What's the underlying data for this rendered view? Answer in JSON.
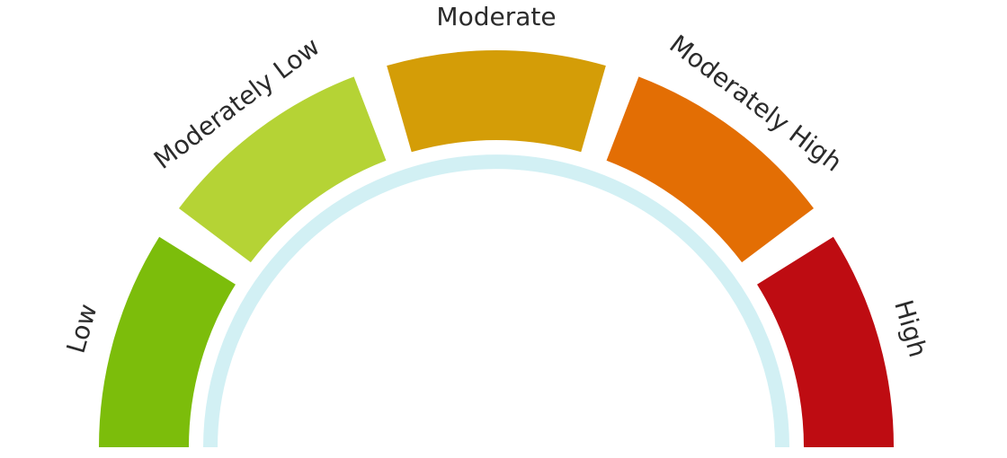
{
  "gauge": {
    "segments": [
      {
        "id": "low",
        "label": "Low",
        "color": "#7cbd0b"
      },
      {
        "id": "moderately-low",
        "label": "Moderately Low",
        "color": "#b5d335"
      },
      {
        "id": "moderate",
        "label": "Moderate",
        "color": "#d49d07"
      },
      {
        "id": "moderately-high",
        "label": "Moderately High",
        "color": "#e36e04"
      },
      {
        "id": "high",
        "label": "High",
        "color": "#be0c12"
      }
    ],
    "inner_arc_color": "#d2f0f4"
  }
}
